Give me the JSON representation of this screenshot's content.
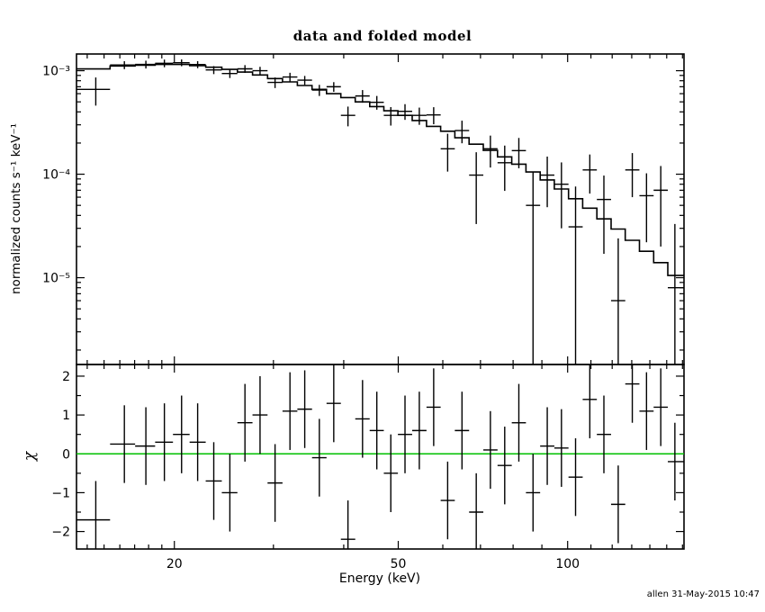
{
  "chart_data": {
    "type": "line+scatter",
    "title": "data and folded model",
    "xlabel": "Energy (keV)",
    "timestamp": "allen 31-May-2015 10:47",
    "xscale": "log",
    "xlim": [
      13.4,
      161
    ],
    "xticks": [
      {
        "value": 20,
        "label": "20"
      },
      {
        "value": 50,
        "label": "50"
      },
      {
        "value": 100,
        "label": "100"
      }
    ],
    "xminor": [
      14,
      15,
      16,
      17,
      18,
      19,
      30,
      40,
      60,
      70,
      80,
      90,
      110,
      120,
      130,
      140,
      150,
      160
    ],
    "colors": {
      "foreground": "#000000",
      "data": "#000000",
      "model": "#000000",
      "zero_line": "#00c000",
      "background": "#ffffff"
    },
    "top_panel": {
      "ylabel": "normalized counts s⁻¹ keV⁻¹",
      "yscale": "log",
      "ylim": [
        1.45e-06,
        0.00145
      ],
      "yticks": [
        {
          "value": 0.001,
          "label": "10⁻³"
        },
        {
          "value": 0.0001,
          "label": "10⁻⁴"
        },
        {
          "value": 1e-05,
          "label": "10⁻⁵"
        }
      ],
      "series_names": [
        "data",
        "folded model"
      ],
      "energy_kev": [
        14.5,
        16.3,
        17.8,
        19.2,
        20.6,
        22.0,
        23.5,
        25.1,
        26.7,
        28.4,
        30.2,
        32.1,
        34.1,
        36.2,
        38.4,
        40.7,
        43.2,
        45.8,
        48.5,
        51.4,
        54.5,
        57.8,
        61.2,
        64.9,
        68.8,
        72.9,
        77.3,
        81.9,
        86.8,
        92.0,
        97.5,
        103.3,
        109.5,
        116.0,
        123.0,
        130.3,
        138.1,
        146.4,
        155.1
      ],
      "counts": [
        0.00066,
        0.001135,
        0.00115,
        0.00118,
        0.001195,
        0.001147,
        0.001017,
        0.00094,
        0.001042,
        0.001,
        0.00077,
        0.00087,
        0.00081,
        0.00065,
        0.0007,
        0.00037,
        0.00057,
        0.000495,
        0.00037,
        0.000405,
        0.00037,
        0.000374,
        0.000176,
        0.000264,
        9.8e-05,
        0.000176,
        0.000129,
        0.000169,
        5e-05,
        9.8e-05,
        8e-05,
        3.1e-05,
        0.00011,
        5.7e-05,
        6e-06,
        0.00011,
        6.2e-05,
        7e-05,
        8e-06
      ],
      "counts_err": [
        0.0002,
        0.0001,
        0.0001,
        0.0001,
        9e-05,
        9e-05,
        9e-05,
        9e-05,
        9e-05,
        9e-05,
        9e-05,
        8.5e-05,
        8e-05,
        8e-05,
        7.5e-05,
        8e-05,
        8e-05,
        7.5e-05,
        7.5e-05,
        7e-05,
        7e-05,
        7e-05,
        7e-05,
        6.5e-05,
        6.5e-05,
        6e-05,
        6e-05,
        5.5e-05,
        5.5e-05,
        5e-05,
        5e-05,
        4.5e-05,
        4.5e-05,
        4e-05,
        1.8e-05,
        5e-05,
        4e-05,
        5e-05,
        2.5e-05
      ],
      "model_counts": [
        0.00104,
        0.00111,
        0.00113,
        0.00115,
        0.00115,
        0.00112,
        0.00108,
        0.00103,
        0.00097,
        0.00091,
        0.00084,
        0.00078,
        0.00072,
        0.00066,
        0.0006,
        0.00055,
        0.0005,
        0.00045,
        0.00041,
        0.00037,
        0.00033,
        0.00029,
        0.00026,
        0.000225,
        0.000195,
        0.00017,
        0.000147,
        0.000125,
        0.000105,
        8.8e-05,
        7.2e-05,
        5.8e-05,
        4.7e-05,
        3.7e-05,
        2.95e-05,
        2.3e-05,
        1.8e-05,
        1.4e-05,
        1.05e-05
      ]
    },
    "bottom_panel": {
      "ylabel": "χ",
      "yscale": "linear",
      "ylim": [
        -2.45,
        2.3
      ],
      "yticks": [
        {
          "value": 2,
          "label": "2"
        },
        {
          "value": 1,
          "label": "1"
        },
        {
          "value": 0,
          "label": "0"
        },
        {
          "value": -1,
          "label": "−1"
        },
        {
          "value": -2,
          "label": "−2"
        }
      ],
      "yminor": [
        -1.5,
        -0.5,
        0.5,
        1.5
      ],
      "chi": [
        -1.7,
        0.25,
        0.2,
        0.3,
        0.5,
        0.3,
        -0.7,
        -1.0,
        0.8,
        1.0,
        -0.75,
        1.1,
        1.15,
        -0.1,
        1.3,
        -2.2,
        0.9,
        0.6,
        -0.5,
        0.5,
        0.6,
        1.2,
        -1.2,
        0.6,
        -1.5,
        0.1,
        -0.3,
        0.8,
        -1.0,
        0.2,
        0.15,
        -0.6,
        1.4,
        0.5,
        -1.3,
        1.8,
        1.1,
        1.2,
        -0.2
      ],
      "chi_err": 1.0
    }
  }
}
